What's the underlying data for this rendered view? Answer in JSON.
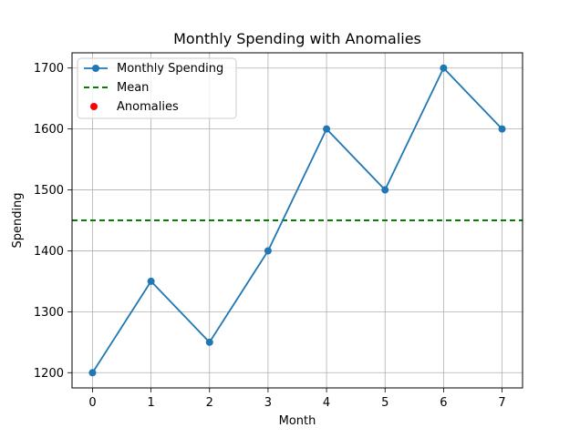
{
  "chart_data": {
    "type": "line",
    "title": "Monthly Spending with Anomalies",
    "xlabel": "Month",
    "ylabel": "Spending",
    "x": [
      0,
      1,
      2,
      3,
      4,
      5,
      6,
      7
    ],
    "xlim": [
      -0.35,
      7.35
    ],
    "ylim": [
      1175,
      1725
    ],
    "xticks": [
      0,
      1,
      2,
      3,
      4,
      5,
      6,
      7
    ],
    "yticks": [
      1200,
      1300,
      1400,
      1500,
      1600,
      1700
    ],
    "grid": true,
    "legend_position": "top-left",
    "series": [
      {
        "name": "Monthly Spending",
        "kind": "line-marker",
        "color": "#1f77b4",
        "values": [
          1200,
          1350,
          1250,
          1400,
          1600,
          1500,
          1700,
          1600
        ]
      }
    ],
    "mean_line": {
      "name": "Mean",
      "value": 1450,
      "style": "dashed",
      "color": "#008000"
    },
    "anomalies": {
      "name": "Anomalies",
      "color": "#ff0000",
      "points": []
    }
  }
}
